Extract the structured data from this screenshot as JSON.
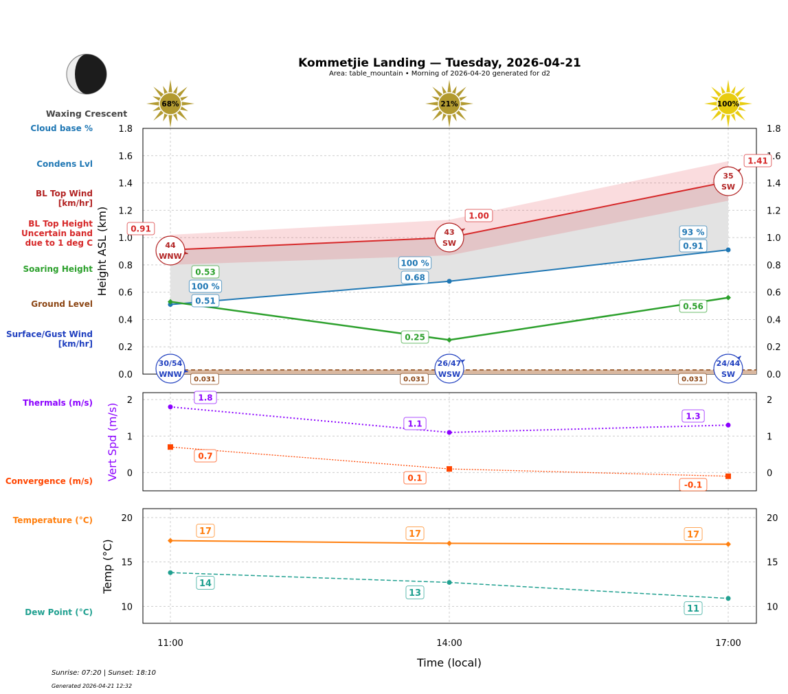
{
  "title": "Kommetjie Landing — Tuesday, 2026-04-21",
  "subtitle": "Area: table_mountain • Morning of 2026-04-20 generated for d2",
  "moon": {
    "phase": "Waxing Crescent",
    "icon": "waxing-crescent-moon-icon"
  },
  "footer": {
    "sun": "Sunrise: 07:20 | Sunset: 18:10",
    "generated": "Generated 2026-04-21 12:32"
  },
  "side_labels": {
    "cloud_base": "Cloud base %",
    "condens": "Condens Lvl",
    "bl_wind": "BL Top Wind\n[km/hr]",
    "bl_top": "BL Top Height\nUncertain band\ndue to 1 deg C",
    "soaring": "Soaring Height",
    "ground": "Ground Level",
    "surface_wind": "Surface/Gust Wind\n[km/hr]",
    "thermals": "Thermals (m/s)",
    "convergence": "Convergence (m/s)",
    "temperature": "Temperature (°C)",
    "dew": "Dew Point (°C)"
  },
  "colors": {
    "bl_top": "#d62728",
    "cloud": "#1f77b4",
    "soaring": "#2ca02c",
    "ground": "#8b4513",
    "surface_wind": "#1f3fbf",
    "thermals": "#8b00ff",
    "convergence": "#ff4500",
    "temperature": "#ff7f0e",
    "dew": "#20a090"
  },
  "chart_data": [
    {
      "type": "line",
      "ylabel": "Height ASL (km)",
      "ylim": [
        0,
        1.8
      ],
      "yticks": [
        "0.0",
        "0.2",
        "0.4",
        "0.6",
        "0.8",
        "1.0",
        "1.2",
        "1.4",
        "1.6",
        "1.8"
      ],
      "grid": true,
      "x": [
        "11:00",
        "14:00",
        "17:00"
      ],
      "sun": [
        "68%",
        "21%",
        "100%"
      ],
      "series": [
        {
          "name": "BL Top Height",
          "values": [
            0.91,
            1.0,
            1.41
          ],
          "labels": [
            "0.91",
            "1.00",
            "1.41"
          ],
          "band_low": [
            0.8,
            0.87,
            1.27
          ],
          "band_high": [
            1.02,
            1.13,
            1.56
          ]
        },
        {
          "name": "Condens Lvl",
          "values": [
            0.51,
            0.68,
            0.91
          ],
          "labels": [
            "0.51",
            "0.68",
            "0.91"
          ]
        },
        {
          "name": "Cloud base %",
          "labels": [
            "100 %",
            "100 %",
            "93 %"
          ]
        },
        {
          "name": "Soaring Height",
          "values": [
            0.53,
            0.25,
            0.56
          ],
          "labels": [
            "0.53",
            "0.25",
            "0.56"
          ]
        },
        {
          "name": "Ground Level",
          "values": [
            0.031,
            0.031,
            0.031
          ],
          "labels": [
            "0.031",
            "0.031",
            "0.031"
          ]
        }
      ],
      "bl_wind": [
        {
          "speed": "44",
          "dir": "WNW"
        },
        {
          "speed": "43",
          "dir": "SW"
        },
        {
          "speed": "35",
          "dir": "SW"
        }
      ],
      "surface_wind": [
        {
          "speed": "30/54",
          "dir": "WNW"
        },
        {
          "speed": "26/47",
          "dir": "WSW"
        },
        {
          "speed": "24/44",
          "dir": "SW"
        }
      ]
    },
    {
      "type": "line",
      "ylabel": "Vert Spd (m/s)",
      "ylim": [
        -0.5,
        2.2
      ],
      "yticks": [
        "0",
        "1",
        "2"
      ],
      "grid": true,
      "x": [
        "11:00",
        "14:00",
        "17:00"
      ],
      "series": [
        {
          "name": "Thermals (m/s)",
          "values": [
            1.8,
            1.1,
            1.3
          ],
          "labels": [
            "1.8",
            "1.1",
            "1.3"
          ]
        },
        {
          "name": "Convergence (m/s)",
          "values": [
            0.7,
            0.1,
            -0.1
          ],
          "labels": [
            "0.7",
            "0.1",
            "-0.1"
          ]
        }
      ]
    },
    {
      "type": "line",
      "ylabel": "Temp (°C)",
      "xlabel": "Time (local)",
      "ylim": [
        8.1,
        21
      ],
      "yticks": [
        "10",
        "15",
        "20"
      ],
      "grid": true,
      "x": [
        "11:00",
        "14:00",
        "17:00"
      ],
      "series": [
        {
          "name": "Temperature (°C)",
          "values": [
            17.4,
            17.1,
            17.0
          ],
          "labels": [
            "17",
            "17",
            "17"
          ]
        },
        {
          "name": "Dew Point (°C)",
          "values": [
            13.8,
            12.7,
            10.9
          ],
          "labels": [
            "14",
            "13",
            "11"
          ]
        }
      ]
    }
  ]
}
